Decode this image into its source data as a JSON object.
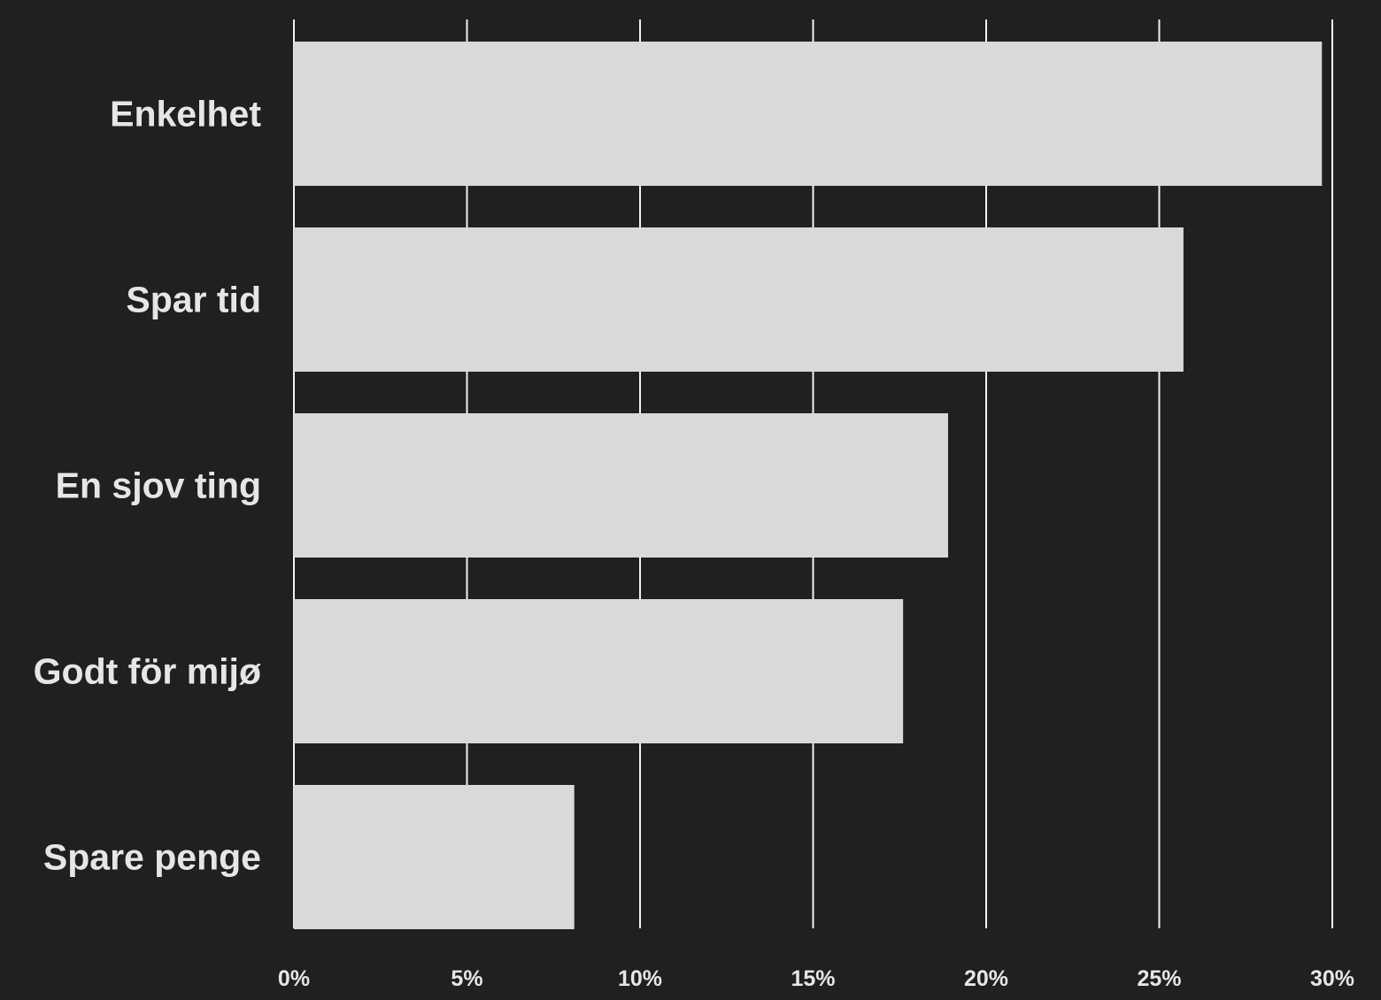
{
  "colors": {
    "background": "#202020",
    "bar": "#d9d9d9",
    "gridline": "#f0f0f0",
    "text": "#e6e6e6"
  },
  "chart_data": {
    "type": "bar",
    "orientation": "horizontal",
    "title": "",
    "xlabel": "",
    "ylabel": "",
    "categories": [
      "Enkelhet",
      "Spar tid",
      "En sjov ting",
      "Godt för mijø",
      "Spare penge"
    ],
    "values": [
      29.7,
      25.7,
      18.9,
      17.6,
      8.1
    ],
    "xlim": [
      0,
      30
    ],
    "x_ticks": [
      0,
      5,
      10,
      15,
      20,
      25,
      30
    ],
    "x_tick_labels": [
      "0%",
      "5%",
      "10%",
      "15%",
      "20%",
      "25%",
      "30%"
    ],
    "grid": "vertical",
    "legend": "none"
  }
}
